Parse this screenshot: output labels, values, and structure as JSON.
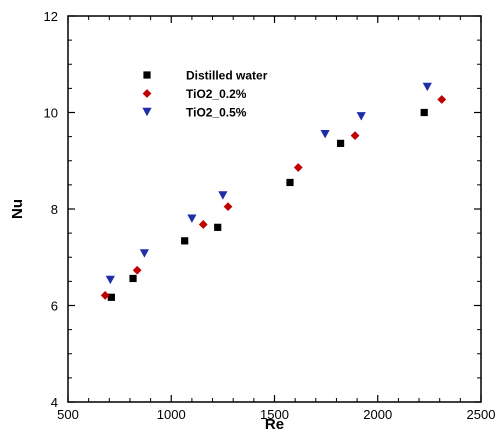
{
  "chart_data": {
    "type": "scatter",
    "title": "",
    "xlabel": "Re",
    "ylabel": "Nu",
    "xlim": [
      500,
      2500
    ],
    "ylim": [
      4,
      12
    ],
    "xticks": [
      500,
      1000,
      1500,
      2000,
      2500
    ],
    "yticks": [
      4,
      6,
      8,
      10,
      12
    ],
    "grid": false,
    "legend_position": "upper-left",
    "series": [
      {
        "name": "Distilled water",
        "marker": "square",
        "color": "#000000",
        "x": [
          710,
          815,
          1065,
          1225,
          1575,
          1820,
          2225
        ],
        "y": [
          6.17,
          6.56,
          7.34,
          7.62,
          8.55,
          9.36,
          10.0
        ]
      },
      {
        "name": "TiO2_0.2%",
        "marker": "diamond",
        "color": "#c00000",
        "x": [
          680,
          835,
          1155,
          1275,
          1615,
          1890,
          2310
        ],
        "y": [
          6.21,
          6.73,
          7.68,
          8.05,
          8.86,
          9.52,
          10.27
        ]
      },
      {
        "name": "TiO2_0.5%",
        "marker": "triangle-down",
        "color": "#1f2ea8",
        "x": [
          705,
          870,
          1100,
          1250,
          1745,
          1920,
          2240
        ],
        "y": [
          6.53,
          7.08,
          7.8,
          8.28,
          9.55,
          9.92,
          10.53
        ]
      }
    ]
  }
}
